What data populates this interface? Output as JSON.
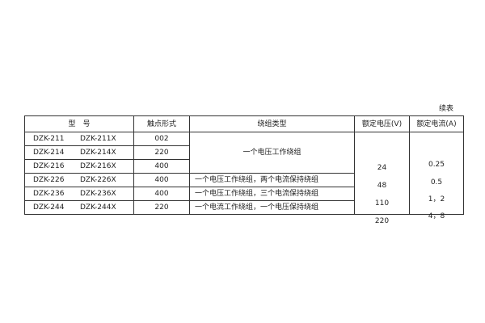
{
  "continued_label": "续表",
  "headers": [
    "型　号",
    "触点形式",
    "绕组类型",
    "额定电压(V)",
    "额定电流(A)"
  ],
  "rows": [
    {
      "model_a": "DZK-211",
      "model_b": "DZK-211X",
      "contact": "002"
    },
    {
      "model_a": "DZK-214",
      "model_b": "DZK-214X",
      "contact": "220"
    },
    {
      "model_a": "DZK-216",
      "model_b": "DZK-216X",
      "contact": "400"
    },
    {
      "model_a": "DZK-226",
      "model_b": "DZK-226X",
      "contact": "400",
      "winding": "一个电压工作绕组，两个电流保持绕组"
    },
    {
      "model_a": "DZK-236",
      "model_b": "DZK-236X",
      "contact": "400",
      "winding": "一个电压工作绕组，三个电流保持绕组"
    },
    {
      "model_a": "DZK-244",
      "model_b": "DZK-244X",
      "contact": "220",
      "winding": "一个电流工作绕组，一个电压保持绕组"
    }
  ],
  "merged_winding": "一个电压工作绕组",
  "voltages": [
    "24",
    "48",
    "110",
    "220"
  ],
  "currents": [
    "0.25",
    "0.5",
    "1，2",
    "4，8"
  ]
}
